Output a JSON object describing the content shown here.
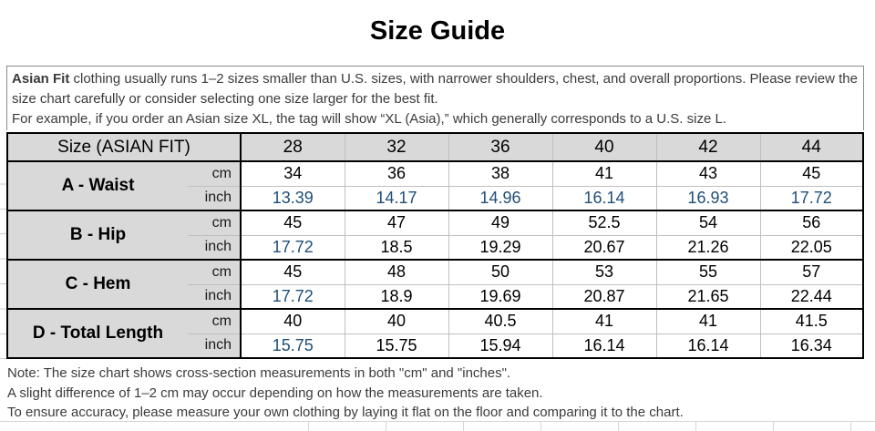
{
  "title": "Size Guide",
  "intro": {
    "lead_bold": "Asian Fit",
    "lead_rest": " clothing usually runs 1–2 sizes smaller than U.S. sizes, with narrower shoulders, chest, and overall proportions. Please review the size chart carefully or consider selecting one size larger for the best fit.",
    "example_line": "For example, if you order an Asian size XL, the tag will show “XL (Asia),” which generally corresponds to a U.S. size L."
  },
  "table": {
    "corner_header": "Size (ASIAN FIT)",
    "sizes": [
      "28",
      "32",
      "36",
      "40",
      "42",
      "44"
    ],
    "unit_cm": "cm",
    "unit_inch": "inch",
    "rows": [
      {
        "label": "A - Waist",
        "cm": [
          "34",
          "36",
          "38",
          "41",
          "43",
          "45"
        ],
        "inch": [
          "13.39",
          "14.17",
          "14.96",
          "16.14",
          "16.93",
          "17.72"
        ],
        "inch_blue": [
          true,
          true,
          true,
          true,
          true,
          true
        ]
      },
      {
        "label": "B - Hip",
        "cm": [
          "45",
          "47",
          "49",
          "52.5",
          "54",
          "56"
        ],
        "inch": [
          "17.72",
          "18.5",
          "19.29",
          "20.67",
          "21.26",
          "22.05"
        ],
        "inch_blue": [
          true,
          false,
          false,
          false,
          false,
          false
        ]
      },
      {
        "label": "C - Hem",
        "cm": [
          "45",
          "48",
          "50",
          "53",
          "55",
          "57"
        ],
        "inch": [
          "17.72",
          "18.9",
          "19.69",
          "20.87",
          "21.65",
          "22.44"
        ],
        "inch_blue": [
          true,
          false,
          false,
          false,
          false,
          false
        ]
      },
      {
        "label": "D - Total Length",
        "cm": [
          "40",
          "40",
          "40.5",
          "41",
          "41",
          "41.5"
        ],
        "inch": [
          "15.75",
          "15.75",
          "15.94",
          "16.14",
          "16.14",
          "16.34"
        ],
        "inch_blue": [
          true,
          false,
          false,
          false,
          false,
          false
        ]
      }
    ]
  },
  "notes": [
    "Note: The size chart shows cross-section measurements in both \"cm\" and \"inches\".",
    "A slight difference of 1–2 cm may occur depending on how the measurements are taken.",
    "To ensure accuracy, please measure your own clothing by laying it flat on the floor and comparing it to the chart."
  ],
  "colors": {
    "inch_accent_blue": "#1f4e79",
    "header_background": "#d9d9d9",
    "table_border": "#000000"
  }
}
